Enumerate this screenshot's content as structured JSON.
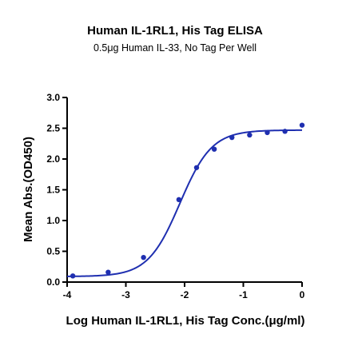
{
  "chart_data": {
    "type": "scatter",
    "title": "Human IL-1RL1, His Tag ELISA",
    "subtitle": "0.5μg Human IL-33, No Tag Per Well",
    "xlabel": "Log Human IL-1RL1, His Tag Conc.(μg/ml)",
    "ylabel": "Mean Abs.(OD450)",
    "xlim": [
      -4,
      0
    ],
    "ylim": [
      0,
      3
    ],
    "x_ticks": [
      "-4",
      "-3",
      "-2",
      "-1",
      "0"
    ],
    "y_ticks": [
      "0.0",
      "0.5",
      "1.0",
      "1.5",
      "2.0",
      "2.5",
      "3.0"
    ],
    "grid": false,
    "color": "#1f2fb0",
    "series": [
      {
        "x": [
          -3.903,
          -3.301,
          -2.699,
          -2.097,
          -1.796,
          -1.495,
          -1.194,
          -0.893,
          -0.592,
          -0.291,
          0
        ],
        "y": [
          0.1,
          0.16,
          0.4,
          1.34,
          1.86,
          2.16,
          2.35,
          2.39,
          2.43,
          2.45,
          2.55
        ]
      }
    ],
    "fit_curve": {
      "type": "4PL",
      "bottom": 0.09,
      "top": 2.47,
      "log_ec50": -2.08,
      "hill": 1.6
    }
  }
}
